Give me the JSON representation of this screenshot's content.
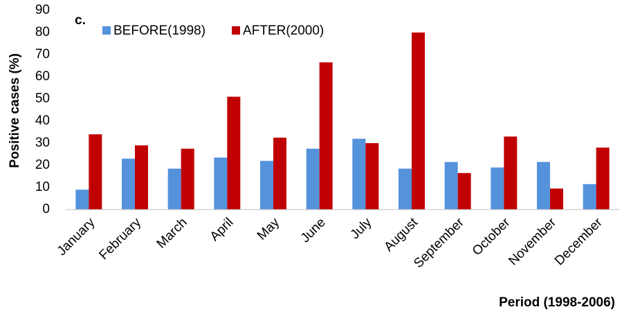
{
  "chart_data": {
    "type": "bar",
    "panel_label": "c.",
    "ylabel": "Positive cases (%)",
    "xlabel": "Period (1998-2006)",
    "categories": [
      "January",
      "February",
      "March",
      "April",
      "May",
      "June",
      "July",
      "August",
      "September",
      "October",
      "November",
      "December"
    ],
    "series": [
      {
        "name": "BEFORE(1998)",
        "color": "#5592dc",
        "values": [
          9,
          23,
          18.5,
          23.5,
          22,
          27.5,
          32,
          18.5,
          21.5,
          19,
          21.5,
          11.5
        ]
      },
      {
        "name": "AFTER(2000)",
        "color": "#c00000",
        "values": [
          34,
          29,
          27.5,
          51,
          32.5,
          66.5,
          30,
          80,
          16.5,
          33,
          9.5,
          28
        ]
      }
    ],
    "ylim": [
      0,
      90
    ],
    "yticks": [
      0,
      10,
      20,
      30,
      40,
      50,
      60,
      70,
      80,
      90
    ],
    "grid": false,
    "legend": "top-left"
  }
}
